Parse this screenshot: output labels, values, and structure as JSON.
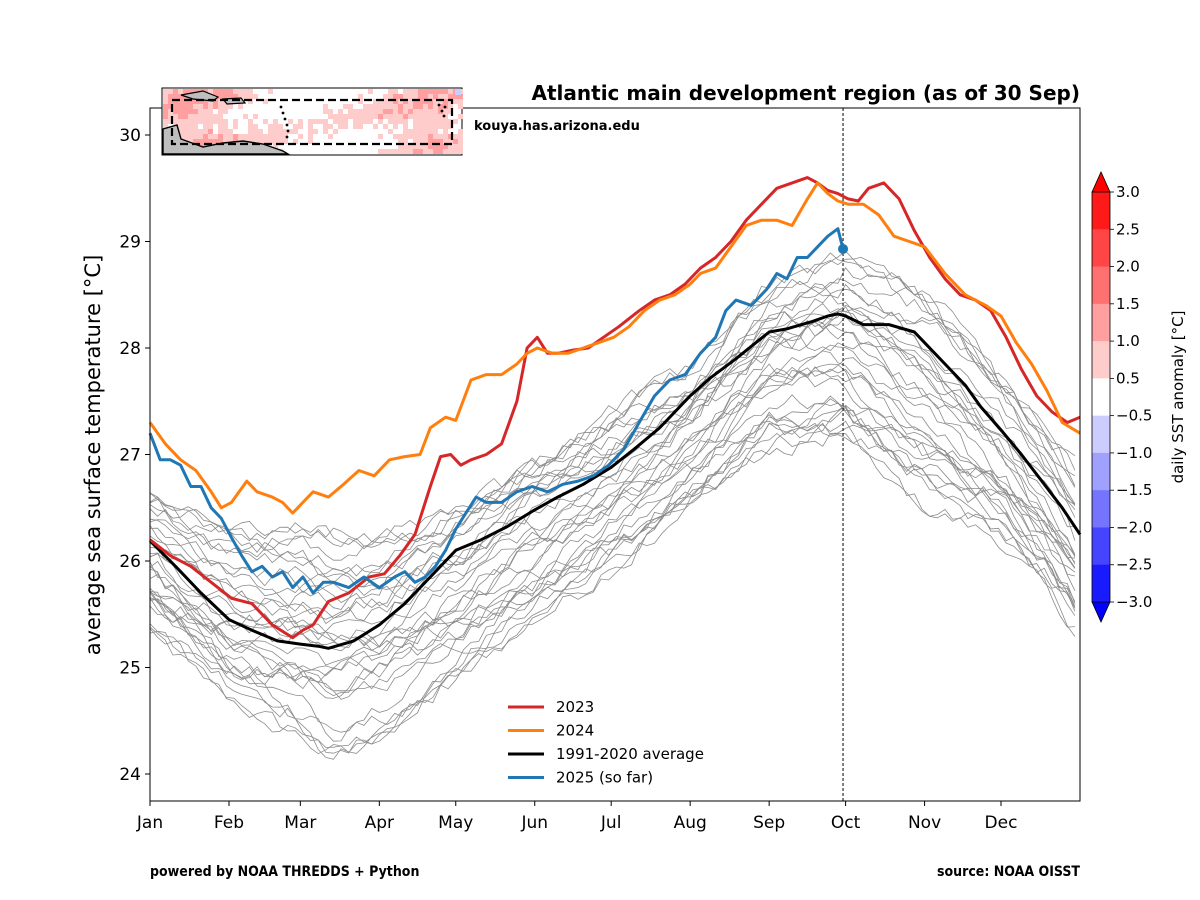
{
  "chart_data": {
    "type": "line",
    "title": "Atlantic main development region (as of 30 Sep)",
    "attribution": "kouya.has.arizona.edu",
    "xlabel": "",
    "ylabel": "average sea surface temperature [°C]",
    "ylim": [
      23.75,
      30.25
    ],
    "yticks": [
      24,
      25,
      26,
      27,
      28,
      29,
      30
    ],
    "xlim": [
      0,
      365
    ],
    "xticks": [
      {
        "day": 0,
        "label": "Jan"
      },
      {
        "day": 31,
        "label": "Feb"
      },
      {
        "day": 59,
        "label": "Mar"
      },
      {
        "day": 90,
        "label": "Apr"
      },
      {
        "day": 120,
        "label": "May"
      },
      {
        "day": 151,
        "label": "Jun"
      },
      {
        "day": 181,
        "label": "Jul"
      },
      {
        "day": 212,
        "label": "Aug"
      },
      {
        "day": 243,
        "label": "Sep"
      },
      {
        "day": 273,
        "label": "Oct"
      },
      {
        "day": 304,
        "label": "Nov"
      },
      {
        "day": 334,
        "label": "Dec"
      }
    ],
    "current_date_marker": {
      "day": 272,
      "label": "30 Sep"
    },
    "grid": false,
    "legend_position": "lower-center",
    "series": [
      {
        "name": "2023",
        "color": "#d62728",
        "x": [
          0,
          8,
          16,
          24,
          32,
          40,
          48,
          56,
          60,
          64,
          70,
          78,
          86,
          92,
          98,
          104,
          110,
          114,
          118,
          122,
          126,
          132,
          138,
          144,
          148,
          152,
          156,
          160,
          166,
          172,
          178,
          184,
          192,
          198,
          204,
          210,
          216,
          222,
          228,
          234,
          240,
          246,
          252,
          258,
          262,
          266,
          270,
          274,
          278,
          282,
          288,
          294,
          300,
          306,
          312,
          318,
          324,
          330,
          336,
          342,
          348,
          354,
          360,
          365
        ],
        "y": [
          26.2,
          26.05,
          25.95,
          25.8,
          25.65,
          25.6,
          25.4,
          25.28,
          25.35,
          25.4,
          25.62,
          25.7,
          25.85,
          25.88,
          26.05,
          26.25,
          26.7,
          26.98,
          27.0,
          26.9,
          26.95,
          27.0,
          27.1,
          27.5,
          28.0,
          28.1,
          27.95,
          27.95,
          27.98,
          28.0,
          28.1,
          28.2,
          28.35,
          28.45,
          28.5,
          28.6,
          28.75,
          28.85,
          29.0,
          29.2,
          29.35,
          29.5,
          29.55,
          29.6,
          29.55,
          29.48,
          29.45,
          29.4,
          29.38,
          29.5,
          29.55,
          29.4,
          29.1,
          28.85,
          28.65,
          28.5,
          28.45,
          28.35,
          28.1,
          27.8,
          27.55,
          27.4,
          27.3,
          27.35
        ]
      },
      {
        "name": "2024",
        "color": "#ff7f0e",
        "x": [
          0,
          6,
          12,
          18,
          24,
          28,
          32,
          38,
          42,
          48,
          52,
          56,
          60,
          64,
          70,
          76,
          82,
          88,
          94,
          100,
          106,
          110,
          116,
          120,
          126,
          132,
          138,
          144,
          148,
          152,
          158,
          164,
          170,
          176,
          182,
          188,
          194,
          200,
          206,
          212,
          216,
          222,
          228,
          234,
          240,
          246,
          252,
          258,
          262,
          266,
          270,
          274,
          280,
          286,
          292,
          298,
          304,
          312,
          320,
          328,
          334,
          340,
          346,
          352,
          358,
          365
        ],
        "y": [
          27.3,
          27.1,
          26.95,
          26.85,
          26.65,
          26.5,
          26.55,
          26.75,
          26.65,
          26.6,
          26.55,
          26.45,
          26.55,
          26.65,
          26.6,
          26.72,
          26.85,
          26.8,
          26.95,
          26.98,
          27.0,
          27.25,
          27.35,
          27.32,
          27.7,
          27.75,
          27.75,
          27.85,
          27.95,
          28.0,
          27.95,
          27.95,
          28.0,
          28.05,
          28.1,
          28.2,
          28.35,
          28.45,
          28.5,
          28.6,
          28.7,
          28.75,
          28.95,
          29.15,
          29.2,
          29.2,
          29.15,
          29.4,
          29.55,
          29.45,
          29.38,
          29.35,
          29.35,
          29.25,
          29.05,
          29.0,
          28.95,
          28.7,
          28.5,
          28.4,
          28.3,
          28.05,
          27.85,
          27.6,
          27.3,
          27.2
        ]
      },
      {
        "name": "1991-2020 average",
        "color": "#000000",
        "x": [
          0,
          10,
          20,
          31,
          40,
          50,
          59,
          66,
          70,
          80,
          90,
          100,
          110,
          120,
          130,
          140,
          151,
          160,
          170,
          181,
          190,
          200,
          212,
          220,
          230,
          243,
          250,
          260,
          266,
          270,
          273,
          280,
          290,
          300,
          304,
          312,
          320,
          326,
          334,
          342,
          350,
          358,
          365
        ],
        "y": [
          26.19,
          25.95,
          25.7,
          25.45,
          25.35,
          25.25,
          25.22,
          25.2,
          25.18,
          25.25,
          25.4,
          25.6,
          25.85,
          26.1,
          26.2,
          26.32,
          26.48,
          26.6,
          26.72,
          26.88,
          27.05,
          27.25,
          27.55,
          27.72,
          27.9,
          28.15,
          28.18,
          28.25,
          28.3,
          28.32,
          28.3,
          28.22,
          28.22,
          28.15,
          28.05,
          27.85,
          27.65,
          27.45,
          27.23,
          27.0,
          26.75,
          26.5,
          26.25
        ]
      },
      {
        "name": "2025 (so far)",
        "color": "#1f77b4",
        "x": [
          0,
          4,
          8,
          12,
          16,
          20,
          24,
          28,
          32,
          36,
          40,
          44,
          48,
          52,
          56,
          60,
          64,
          68,
          72,
          78,
          84,
          90,
          96,
          100,
          104,
          108,
          112,
          116,
          120,
          124,
          128,
          132,
          138,
          144,
          150,
          156,
          162,
          168,
          174,
          180,
          186,
          192,
          198,
          204,
          210,
          216,
          222,
          226,
          230,
          236,
          242,
          246,
          250,
          254,
          258,
          262,
          266,
          270,
          272
        ],
        "y": [
          27.2,
          26.95,
          26.95,
          26.9,
          26.7,
          26.7,
          26.5,
          26.4,
          26.22,
          26.05,
          25.9,
          25.95,
          25.85,
          25.9,
          25.75,
          25.85,
          25.7,
          25.8,
          25.8,
          25.75,
          25.85,
          25.75,
          25.85,
          25.9,
          25.8,
          25.85,
          25.95,
          26.1,
          26.3,
          26.45,
          26.6,
          26.55,
          26.55,
          26.65,
          26.7,
          26.65,
          26.72,
          26.75,
          26.8,
          26.9,
          27.05,
          27.3,
          27.55,
          27.7,
          27.75,
          27.95,
          28.1,
          28.35,
          28.45,
          28.4,
          28.55,
          28.7,
          28.65,
          28.85,
          28.85,
          28.95,
          29.05,
          29.12,
          28.93
        ]
      }
    ],
    "historical_years_band": {
      "color": "#8c8c8c",
      "description": "individual years (thin gray lines)",
      "mean": "1991-2020 average",
      "spread_low_x": [
        0,
        31,
        59,
        70,
        90,
        120,
        151,
        181,
        212,
        243,
        273,
        304,
        334,
        365
      ],
      "spread_low_y": [
        25.3,
        24.7,
        24.35,
        24.15,
        24.35,
        24.9,
        25.45,
        25.9,
        26.5,
        27.05,
        27.1,
        26.5,
        26.2,
        25.3
      ],
      "spread_high_x": [
        0,
        31,
        59,
        90,
        120,
        151,
        181,
        212,
        243,
        273,
        304,
        334,
        365
      ],
      "spread_high_y": [
        26.7,
        26.3,
        26.3,
        26.2,
        26.5,
        27.0,
        27.4,
        27.8,
        28.6,
        28.9,
        28.6,
        27.8,
        26.8
      ]
    },
    "colorbar": {
      "label": "daily SST anomaly [°C]",
      "ticks": [
        "3.0",
        "2.5",
        "2.0",
        "1.5",
        "1.0",
        "0.5",
        "−0.5",
        "−1.0",
        "−1.5",
        "−2.0",
        "−2.5",
        "−3.0"
      ],
      "bins": [
        {
          "range": [
            2.5,
            3.0
          ],
          "color": "#ff1a1a"
        },
        {
          "range": [
            2.0,
            2.5
          ],
          "color": "#ff4545"
        },
        {
          "range": [
            1.5,
            2.0
          ],
          "color": "#ff7070"
        },
        {
          "range": [
            1.0,
            1.5
          ],
          "color": "#ff9f9f"
        },
        {
          "range": [
            0.5,
            1.0
          ],
          "color": "#ffcccc"
        },
        {
          "range": [
            -0.5,
            0.5
          ],
          "color": "#ffffff"
        },
        {
          "range": [
            -1.0,
            -0.5
          ],
          "color": "#ccccff"
        },
        {
          "range": [
            -1.5,
            -1.0
          ],
          "color": "#a0a0ff"
        },
        {
          "range": [
            -2.0,
            -1.5
          ],
          "color": "#7474ff"
        },
        {
          "range": [
            -2.5,
            -2.0
          ],
          "color": "#4545ff"
        },
        {
          "range": [
            -3.0,
            -2.5
          ],
          "color": "#1a1aff"
        }
      ],
      "extend_high_color": "#ff0000",
      "extend_low_color": "#0000ff"
    },
    "inset_map": {
      "description": "SST anomaly map of the Atlantic main development region with dashed box outline",
      "land_color": "#bebebe",
      "dominant_anomaly_color": "#ffcccc"
    }
  },
  "footer": {
    "left": "powered by NOAA THREDDS + Python",
    "right": "source: NOAA OISST"
  }
}
